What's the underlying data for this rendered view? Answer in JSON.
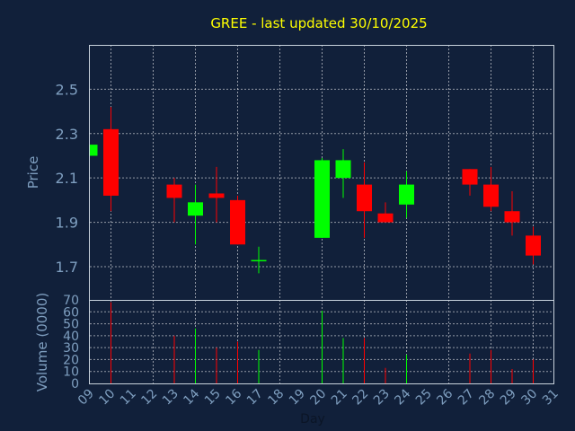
{
  "title": "GREE - last updated 30/10/2025",
  "colors": {
    "background": "#11203a",
    "up": "#00ff00",
    "down": "#ff0000",
    "title": "#ffff00",
    "axis_text": "#7f9fc0"
  },
  "chart_data": [
    {
      "type": "candlestick",
      "ylabel": "Price",
      "ylim": [
        1.55,
        2.7
      ],
      "yticks": [
        1.7,
        1.9,
        2.1,
        2.3,
        2.5
      ],
      "ytick_labels": [
        "1.7",
        "1.9",
        "2.1",
        "2.3",
        "2.5"
      ],
      "x_ticks": [
        "09",
        "10",
        "11",
        "12",
        "13",
        "14",
        "15",
        "16",
        "17",
        "18",
        "19",
        "20",
        "21",
        "22",
        "23",
        "24",
        "25",
        "26",
        "27",
        "28",
        "29",
        "30",
        "31"
      ],
      "grid": true,
      "candles": [
        {
          "day": "09",
          "open": 2.2,
          "high": 2.25,
          "low": 2.2,
          "close": 2.25
        },
        {
          "day": "10",
          "open": 2.32,
          "high": 2.42,
          "low": 1.95,
          "close": 2.02
        },
        {
          "day": "13",
          "open": 2.07,
          "high": 2.1,
          "low": 1.9,
          "close": 2.01
        },
        {
          "day": "14",
          "open": 1.93,
          "high": 2.07,
          "low": 1.8,
          "close": 1.99
        },
        {
          "day": "15",
          "open": 2.03,
          "high": 2.15,
          "low": 1.9,
          "close": 2.01
        },
        {
          "day": "16",
          "open": 2.0,
          "high": 2.02,
          "low": 1.8,
          "close": 1.8
        },
        {
          "day": "17",
          "open": 1.73,
          "high": 1.79,
          "low": 1.67,
          "close": 1.73
        },
        {
          "day": "20",
          "open": 1.83,
          "high": 2.19,
          "low": 1.83,
          "close": 2.18
        },
        {
          "day": "21",
          "open": 2.1,
          "high": 2.23,
          "low": 2.01,
          "close": 2.18
        },
        {
          "day": "22",
          "open": 2.07,
          "high": 2.17,
          "low": 1.83,
          "close": 1.95
        },
        {
          "day": "23",
          "open": 1.94,
          "high": 1.99,
          "low": 1.9,
          "close": 1.9
        },
        {
          "day": "24",
          "open": 1.98,
          "high": 2.13,
          "low": 1.92,
          "close": 2.07
        },
        {
          "day": "27",
          "open": 2.14,
          "high": 2.14,
          "low": 2.02,
          "close": 2.07
        },
        {
          "day": "28",
          "open": 2.07,
          "high": 2.15,
          "low": 1.95,
          "close": 1.97
        },
        {
          "day": "29",
          "open": 1.95,
          "high": 2.04,
          "low": 1.84,
          "close": 1.9
        },
        {
          "day": "30",
          "open": 1.84,
          "high": 1.88,
          "low": 1.71,
          "close": 1.75
        }
      ]
    },
    {
      "type": "bar",
      "ylabel": "Volume (0000)",
      "xlabel": "Day",
      "ylim": [
        0,
        70
      ],
      "yticks": [
        0,
        10,
        20,
        30,
        40,
        50,
        60,
        70
      ],
      "ytick_labels": [
        "0",
        "10",
        "20",
        "30",
        "40",
        "50",
        "60",
        "70"
      ],
      "x_ticks": [
        "09",
        "10",
        "11",
        "12",
        "13",
        "14",
        "15",
        "16",
        "17",
        "18",
        "19",
        "20",
        "21",
        "22",
        "23",
        "24",
        "25",
        "26",
        "27",
        "28",
        "29",
        "30",
        "31"
      ],
      "grid": true,
      "bars": [
        {
          "day": "09",
          "value": 0,
          "dir": "up"
        },
        {
          "day": "10",
          "value": 68,
          "dir": "down"
        },
        {
          "day": "13",
          "value": 40,
          "dir": "down"
        },
        {
          "day": "14",
          "value": 46,
          "dir": "up"
        },
        {
          "day": "15",
          "value": 30,
          "dir": "down"
        },
        {
          "day": "16",
          "value": 35,
          "dir": "down"
        },
        {
          "day": "17",
          "value": 28,
          "dir": "up"
        },
        {
          "day": "20",
          "value": 61,
          "dir": "up"
        },
        {
          "day": "21",
          "value": 38,
          "dir": "up"
        },
        {
          "day": "22",
          "value": 38,
          "dir": "down"
        },
        {
          "day": "23",
          "value": 13,
          "dir": "down"
        },
        {
          "day": "24",
          "value": 24,
          "dir": "up"
        },
        {
          "day": "27",
          "value": 25,
          "dir": "down"
        },
        {
          "day": "28",
          "value": 28,
          "dir": "down"
        },
        {
          "day": "29",
          "value": 12,
          "dir": "down"
        },
        {
          "day": "30",
          "value": 20,
          "dir": "down"
        }
      ]
    }
  ]
}
